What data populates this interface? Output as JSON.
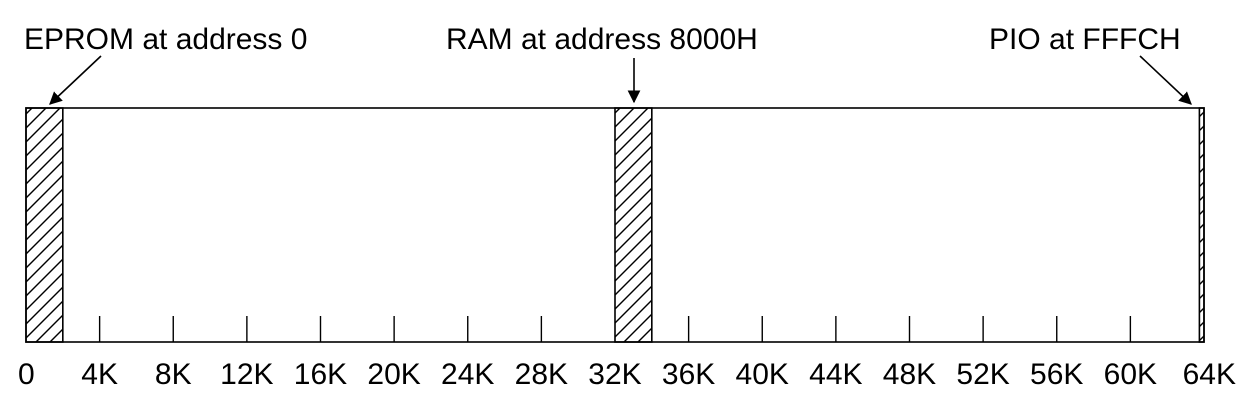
{
  "diagram": {
    "labels": {
      "eprom": "EPROM at address 0",
      "ram": "RAM at address 8000H",
      "pio": "PIO at FFFCH"
    },
    "axis": {
      "ticks": [
        "0",
        "4K",
        "8K",
        "12K",
        "16K",
        "20K",
        "24K",
        "28K",
        "32K",
        "36K",
        "40K",
        "44K",
        "48K",
        "52K",
        "56K",
        "60K",
        "64K"
      ]
    },
    "regions": [
      {
        "name": "EPROM",
        "start_k": 0,
        "end_k": 2
      },
      {
        "name": "RAM",
        "start_k": 32,
        "end_k": 34
      },
      {
        "name": "PIO",
        "start_k": 63.75,
        "end_k": 64
      }
    ]
  }
}
